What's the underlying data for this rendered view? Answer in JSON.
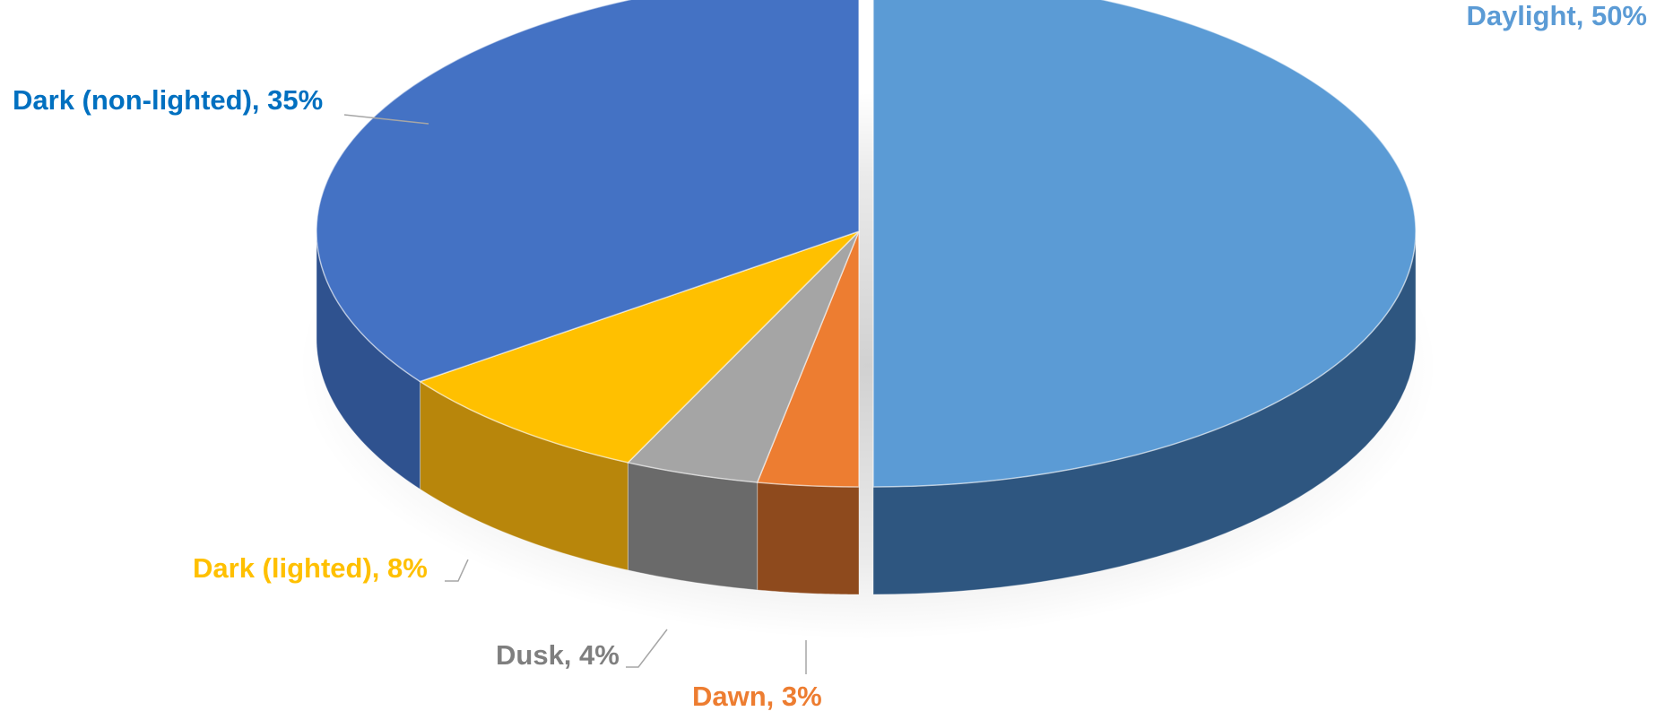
{
  "chart_data": {
    "type": "pie",
    "title": "",
    "style": "3d-exploded",
    "slices": [
      {
        "label": "Daylight",
        "value": 50,
        "display": "Daylight, 50%",
        "color": "#5B9BD5",
        "side_color": "#2E5680",
        "exploded": true
      },
      {
        "label": "Dawn",
        "value": 3,
        "display": "Dawn, 3%",
        "color": "#ED7D31",
        "side_color": "#8E4A1D"
      },
      {
        "label": "Dusk",
        "value": 4,
        "display": "Dusk, 4%",
        "color": "#A5A5A5",
        "side_color": "#6A6A6A"
      },
      {
        "label": "Dark (lighted)",
        "value": 8,
        "display": "Dark (lighted), 8%",
        "color": "#FFC000",
        "side_color": "#B8860B"
      },
      {
        "label": "Dark (non-lighted)",
        "value": 35,
        "display": "Dark (non-lighted), 35%",
        "color": "#4472C4",
        "side_color": "#2F528F"
      }
    ],
    "label_colors": {
      "Daylight": "#5B9BD5",
      "Dawn": "#ED7D31",
      "Dusk": "#7F7F7F",
      "Dark (lighted)": "#FFC000",
      "Dark (non-lighted)": "#0070C0"
    },
    "legend": "none",
    "data_labels": "outside-with-leader-lines"
  }
}
